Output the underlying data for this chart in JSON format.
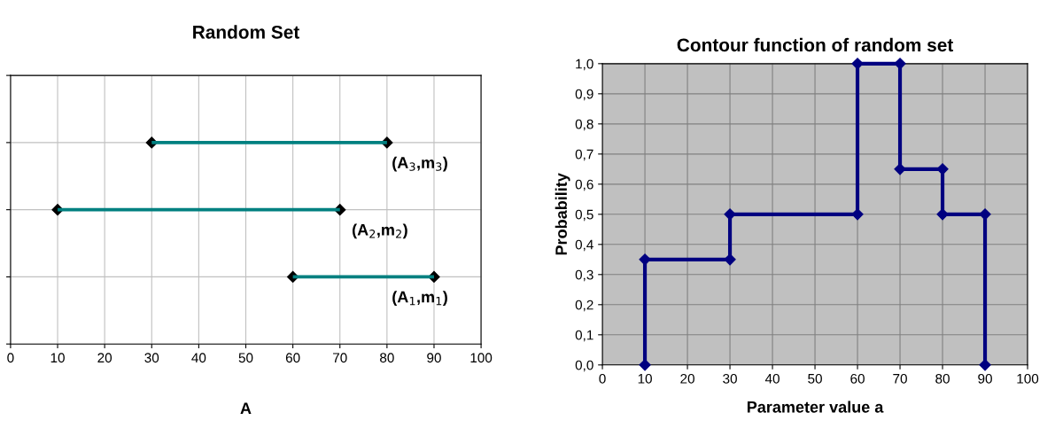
{
  "chart_data": [
    {
      "type": "bar",
      "title": "Random Set",
      "xlabel": "A",
      "orientation": "horizontal",
      "categories": [
        null,
        null,
        null
      ],
      "base": [
        30,
        10,
        60
      ],
      "values": [
        50,
        60,
        30
      ],
      "color": "#008080",
      "marker": "diamond",
      "annotations": [
        "(A$_{3}$,m$_{3}$)",
        "(A$_{2}$,m$_{2}$)",
        "(A$_{1}$,m$_{1}$)"
      ],
      "xlim": [
        0,
        100
      ],
      "xticks": [
        0,
        10,
        20,
        30,
        40,
        50,
        60,
        70,
        80,
        90,
        100
      ],
      "grid": true,
      "tick_labels": "x"
    },
    {
      "type": "line",
      "title": "Contour function of random set",
      "xlabel": "Parameter value a",
      "ylabel": "Probability",
      "series": [
        {
          "color": "#000080",
          "x": [
            10,
            10,
            30,
            30,
            60,
            60,
            70,
            70,
            80,
            80,
            90,
            90
          ],
          "values": [
            0,
            0.35,
            0.35,
            0.5,
            0.5,
            1,
            1,
            0.65,
            0.65,
            0.5,
            0.5,
            0
          ]
        }
      ],
      "marker": "diamond",
      "line_style": "solid",
      "xlim": [
        0,
        100
      ],
      "xticks": [
        0,
        10,
        20,
        30,
        40,
        50,
        60,
        70,
        80,
        90,
        100
      ],
      "ylim": [
        0,
        1
      ],
      "yticks": [
        {
          "value": 0,
          "label": "0,0"
        },
        {
          "value": 0.1,
          "label": "0,1"
        },
        {
          "value": 0.2,
          "label": "0,2"
        },
        {
          "value": 0.3,
          "label": "0,3"
        },
        {
          "value": 0.4,
          "label": "0,4"
        },
        {
          "value": 0.5,
          "label": "0,5"
        },
        {
          "value": 0.6,
          "label": "0,6"
        },
        {
          "value": 0.7,
          "label": "0,7"
        },
        {
          "value": 0.8,
          "label": "0,8"
        },
        {
          "value": 0.9,
          "label": "0,9"
        },
        {
          "value": 1,
          "label": "1,0"
        }
      ],
      "grid": true,
      "legend": false
    }
  ]
}
